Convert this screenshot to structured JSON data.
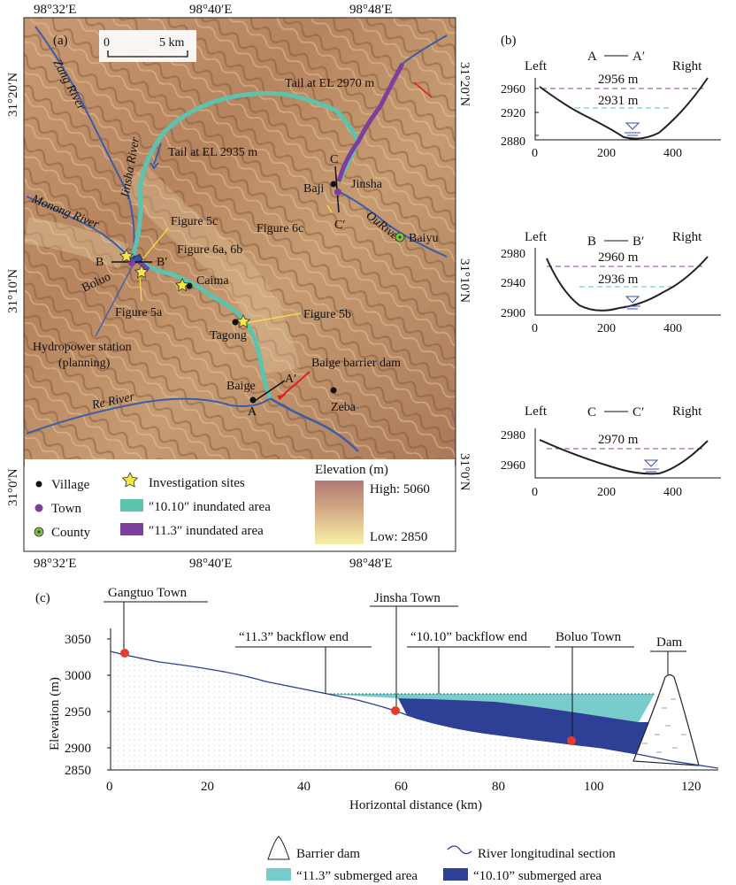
{
  "panel_a": {
    "label": "(a)",
    "scale_bar": {
      "zero": "0",
      "length_label": "5 km"
    },
    "lon_ticks": [
      "98°32′E",
      "98°40′E",
      "98°48′E"
    ],
    "lat_ticks": [
      "31°20′N",
      "31°10′N",
      "31°0′N"
    ],
    "rivers": {
      "zang": "Zang River",
      "jinsha": "Jinsha River",
      "monong": "Monong River",
      "re": "Re River",
      "ou": "OuRiver"
    },
    "places": {
      "baji": "Baji",
      "jinsha_town": "Jinsha",
      "baiyu": "Baiyu",
      "boluo": "Boluo",
      "caima": "Caima",
      "tagong": "Tagong",
      "baige": "Baige",
      "zeba": "Zeba"
    },
    "annotations": {
      "tail_2970": "Tail at EL 2970 m",
      "tail_2935": "Tail at EL 2935 m",
      "fig5c": "Figure 5c",
      "fig6ab": "Figure 6a, 6b",
      "fig6c": "Figure 6c",
      "fig5a": "Figure 5a",
      "fig5b": "Figure 5b",
      "hydro_line1": "Hydropower station",
      "hydro_line2": "(planning)",
      "barrier_dam": "Baige barrier dam"
    },
    "sections": {
      "a": "A",
      "a_prime": "A′",
      "b": "B",
      "b_prime": "B′",
      "c": "C",
      "c_prime": "C′"
    },
    "legend": {
      "village": "Village",
      "town": "Town",
      "county": "County",
      "investigation": "Investigation sites",
      "inundated_1010": "″10.10″ inundated area",
      "inundated_113": "″11.3″ inundated area",
      "elevation_title": "Elevation (m)",
      "elev_high": "High: 5060",
      "elev_low": "Low: 2850"
    },
    "colors": {
      "inundated_1010": "#5cc3ae",
      "inundated_113": "#7b3f9e",
      "river": "#3a5da8",
      "village": "#111111",
      "town": "#7b3f9e",
      "county": "#7ac142",
      "star": "#f5e642"
    }
  },
  "panel_b": {
    "label": "(b)",
    "left": "Left",
    "right": "Right",
    "sections": [
      {
        "title_a": "A",
        "title_b": "A′",
        "yticks": [
          "2960",
          "2920",
          "2880"
        ],
        "xticks": [
          "0",
          "200",
          "400"
        ],
        "levels": [
          "2956 m",
          "2931 m"
        ]
      },
      {
        "title_a": "B",
        "title_b": "B′",
        "yticks": [
          "2980",
          "2940",
          "2900"
        ],
        "xticks": [
          "0",
          "200",
          "400"
        ],
        "levels": [
          "2960 m",
          "2936 m"
        ]
      },
      {
        "title_a": "C",
        "title_b": "C′",
        "yticks": [
          "2980",
          "2960"
        ],
        "xticks": [
          "0",
          "200",
          "400"
        ],
        "levels": [
          "2970 m"
        ]
      }
    ]
  },
  "panel_c": {
    "label": "(c)",
    "xlabel": "Horizontal distance (km)",
    "ylabel": "Elevation (m)",
    "xticks": [
      "0",
      "20",
      "40",
      "60",
      "80",
      "100",
      "120"
    ],
    "yticks": [
      "3050",
      "3000",
      "2950",
      "2900",
      "2850"
    ],
    "callouts": {
      "gangtuo": "Gangtuo Town",
      "backflow_113": "“11.3” backflow end",
      "jinsha": "Jinsha Town",
      "backflow_1010": "“10.10” backflow end",
      "boluo": "Boluo Town",
      "dam": "Dam"
    },
    "legend": {
      "barrier": "Barrier dam",
      "river_section": "River longitudinal section",
      "sub_113": "“11.3” submerged area",
      "sub_1010": "“10.10” submerged area"
    },
    "colors": {
      "sub_113": "#78cdcc",
      "sub_1010": "#2e3f96",
      "river": "#2e3f96",
      "town_dot": "#e63b2e"
    }
  }
}
